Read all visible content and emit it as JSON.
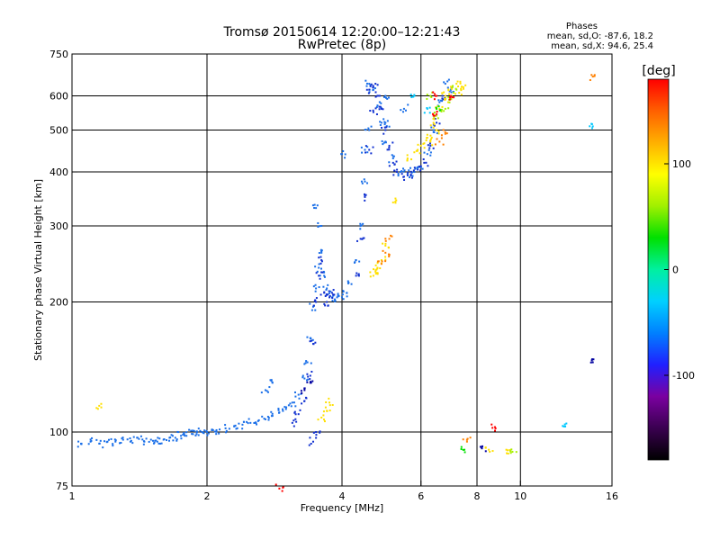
{
  "chart_data": {
    "type": "scatter",
    "title": "Tromsø 20150614 12:20:00–12:21:43",
    "subtitle": "RwPretec (8p)",
    "xlabel": "Frequency [MHz]",
    "ylabel": "Stationary phase Virtual Height [km]",
    "x_scale": "log",
    "y_scale": "log",
    "xlim": [
      1,
      16
    ],
    "ylim": [
      75,
      750
    ],
    "x_ticks": [
      1,
      2,
      4,
      6,
      8,
      10,
      16
    ],
    "y_ticks": [
      75,
      100,
      200,
      300,
      400,
      500,
      600,
      750
    ],
    "x_grid": [
      2,
      4,
      6,
      8,
      10
    ],
    "y_grid": [
      100,
      200,
      300,
      400,
      500,
      600
    ],
    "grid": true,
    "stats": {
      "heading": "Phases",
      "line1": "mean, sd,O: -87.6, 18.2",
      "line2": "mean, sd,X:  94.6, 25.4"
    },
    "colorbar": {
      "label": "[deg]",
      "min": -180,
      "max": 180,
      "ticks": [
        100,
        0,
        -100
      ],
      "colors": [
        "#000000",
        "#3a0050",
        "#7a00a0",
        "#2020ff",
        "#0080ff",
        "#00d0ff",
        "#00f0a0",
        "#00e000",
        "#a0f000",
        "#ffff00",
        "#ffb000",
        "#ff6000",
        "#ff0000"
      ]
    },
    "series": [
      {
        "color": "#1a6fe8",
        "points": [
          [
            1.05,
            94
          ],
          [
            1.1,
            95
          ],
          [
            1.15,
            94
          ],
          [
            1.2,
            95
          ],
          [
            1.25,
            95
          ],
          [
            1.3,
            96
          ],
          [
            1.35,
            95
          ],
          [
            1.4,
            97
          ],
          [
            1.45,
            95
          ],
          [
            1.5,
            96
          ],
          [
            1.55,
            95
          ],
          [
            1.6,
            96
          ],
          [
            1.65,
            97
          ],
          [
            1.7,
            97
          ],
          [
            1.75,
            98
          ],
          [
            1.8,
            98
          ],
          [
            1.85,
            99
          ],
          [
            1.9,
            100
          ],
          [
            1.95,
            100
          ],
          [
            2.0,
            100
          ],
          [
            2.05,
            101
          ],
          [
            2.1,
            101
          ],
          [
            2.2,
            102
          ],
          [
            2.3,
            103
          ],
          [
            2.4,
            104
          ],
          [
            2.5,
            105
          ],
          [
            2.6,
            106
          ],
          [
            2.7,
            107
          ],
          [
            2.8,
            109
          ],
          [
            2.9,
            111
          ],
          [
            3.0,
            113
          ],
          [
            3.1,
            117
          ],
          [
            3.2,
            122
          ],
          [
            3.3,
            133
          ],
          [
            3.35,
            145
          ],
          [
            3.4,
            165
          ],
          [
            3.45,
            195
          ],
          [
            3.5,
            215
          ],
          [
            3.55,
            240
          ],
          [
            3.6,
            260
          ],
          [
            3.65,
            230
          ],
          [
            3.7,
            215
          ],
          [
            3.8,
            205
          ],
          [
            3.9,
            205
          ],
          [
            4.0,
            205
          ],
          [
            4.1,
            210
          ],
          [
            4.2,
            220
          ],
          [
            4.3,
            250
          ],
          [
            4.4,
            300
          ],
          [
            4.5,
            380
          ],
          [
            4.6,
            500
          ],
          [
            4.7,
            620
          ],
          [
            4.8,
            570
          ],
          [
            4.9,
            520
          ],
          [
            5.0,
            470
          ],
          [
            5.2,
            430
          ],
          [
            5.4,
            400
          ],
          [
            5.6,
            395
          ],
          [
            5.8,
            400
          ],
          [
            6.0,
            410
          ],
          [
            6.2,
            440
          ],
          [
            6.4,
            500
          ],
          [
            6.6,
            580
          ],
          [
            6.8,
            640
          ],
          [
            7.0,
            620
          ],
          [
            2.7,
            125
          ],
          [
            2.8,
            130
          ],
          [
            3.5,
            330
          ],
          [
            3.6,
            300
          ],
          [
            4.0,
            440
          ],
          [
            4.6,
            640
          ],
          [
            5.0,
            600
          ],
          [
            5.5,
            560
          ],
          [
            5.0,
            520
          ],
          [
            4.5,
            450
          ]
        ]
      },
      {
        "color": "#1030d0",
        "points": [
          [
            3.3,
            118
          ],
          [
            3.4,
            135
          ],
          [
            3.45,
            160
          ],
          [
            3.5,
            200
          ],
          [
            3.55,
            230
          ],
          [
            3.6,
            250
          ],
          [
            3.65,
            210
          ],
          [
            3.7,
            200
          ],
          [
            3.75,
            205
          ],
          [
            3.8,
            210
          ],
          [
            4.3,
            230
          ],
          [
            4.4,
            280
          ],
          [
            4.5,
            350
          ],
          [
            4.6,
            450
          ],
          [
            4.7,
            550
          ],
          [
            4.8,
            600
          ],
          [
            4.9,
            560
          ],
          [
            5.0,
            500
          ],
          [
            5.1,
            460
          ],
          [
            5.2,
            420
          ],
          [
            5.3,
            400
          ],
          [
            5.5,
            390
          ],
          [
            5.7,
            395
          ],
          [
            5.9,
            405
          ],
          [
            6.1,
            420
          ],
          [
            6.3,
            460
          ],
          [
            6.5,
            520
          ],
          [
            6.7,
            600
          ],
          [
            4.6,
            620
          ],
          [
            4.75,
            640
          ],
          [
            3.2,
            110
          ],
          [
            3.1,
            105
          ],
          [
            3.5,
            100
          ],
          [
            3.45,
            95
          ]
        ]
      },
      {
        "color": "#ffe000",
        "points": [
          [
            1.15,
            115
          ],
          [
            3.6,
            108
          ],
          [
            3.7,
            112
          ],
          [
            3.75,
            117
          ],
          [
            4.7,
            230
          ],
          [
            4.8,
            240
          ],
          [
            4.9,
            250
          ],
          [
            5.0,
            270
          ],
          [
            4.75,
            235
          ],
          [
            6.0,
            460
          ],
          [
            6.2,
            480
          ],
          [
            6.4,
            520
          ],
          [
            6.6,
            560
          ],
          [
            6.8,
            600
          ],
          [
            7.0,
            630
          ],
          [
            7.2,
            640
          ],
          [
            7.4,
            630
          ],
          [
            6.9,
            580
          ],
          [
            6.5,
            500
          ],
          [
            6.3,
            470
          ],
          [
            5.6,
            430
          ],
          [
            5.2,
            340
          ],
          [
            5.9,
            450
          ],
          [
            7.3,
            610
          ],
          [
            8.5,
            91
          ],
          [
            9.3,
            91
          ]
        ]
      },
      {
        "color": "#a8f000",
        "points": [
          [
            6.5,
            540
          ],
          [
            6.8,
            560
          ],
          [
            7.0,
            590
          ],
          [
            7.2,
            620
          ],
          [
            9.6,
            90
          ],
          [
            6.3,
            600
          ]
        ]
      },
      {
        "color": "#ff8000",
        "points": [
          [
            4.9,
            245
          ],
          [
            5.0,
            260
          ],
          [
            5.1,
            280
          ],
          [
            6.6,
            470
          ],
          [
            7.6,
            95
          ],
          [
            14.5,
            665
          ],
          [
            6.8,
            490
          ]
        ]
      },
      {
        "color": "#ff0000",
        "points": [
          [
            7.0,
            600
          ],
          [
            8.8,
            102
          ],
          [
            2.9,
            74
          ],
          [
            6.4,
            540
          ],
          [
            6.5,
            600
          ]
        ]
      },
      {
        "color": "#00c8ff",
        "points": [
          [
            14.5,
            510
          ],
          [
            12.5,
            103
          ],
          [
            6.2,
            560
          ],
          [
            5.8,
            600
          ]
        ]
      },
      {
        "color": "#00e000",
        "points": [
          [
            7.5,
            91
          ],
          [
            6.5,
            560
          ]
        ]
      },
      {
        "color": "#0000a0",
        "points": [
          [
            14.5,
            145
          ],
          [
            8.2,
            92
          ],
          [
            3.4,
            130
          ],
          [
            3.3,
            125
          ]
        ]
      }
    ]
  }
}
